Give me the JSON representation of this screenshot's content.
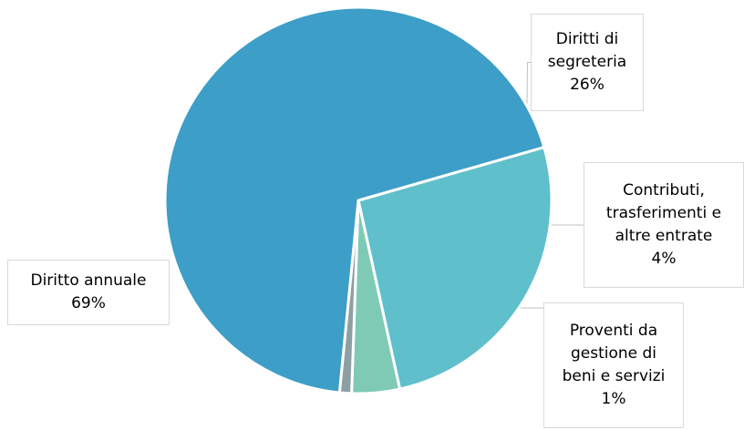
{
  "chart_data": {
    "type": "pie",
    "title": "",
    "legend": "none",
    "slices": [
      {
        "name": "Diritti di segreteria",
        "label_lines": [
          "Diritti di",
          "segreteria"
        ],
        "value": 26,
        "pct_label": "26%",
        "color": "#5FC0CC"
      },
      {
        "name": "Contributi, trasferimenti e altre entrate",
        "label_lines": [
          "Contributi,",
          "trasferimenti e",
          "altre entrate"
        ],
        "value": 4,
        "pct_label": "4%",
        "color": "#7FCAB4"
      },
      {
        "name": "Proventi da gestione di beni e servizi",
        "label_lines": [
          "Proventi da",
          "gestione di",
          "beni e servizi"
        ],
        "value": 1,
        "pct_label": "1%",
        "color": "#8E9FA3"
      },
      {
        "name": "Diritto annuale",
        "label_lines": [
          "Diritto annuale"
        ],
        "value": 69,
        "pct_label": "69%",
        "color": "#3D9EC7"
      }
    ]
  }
}
